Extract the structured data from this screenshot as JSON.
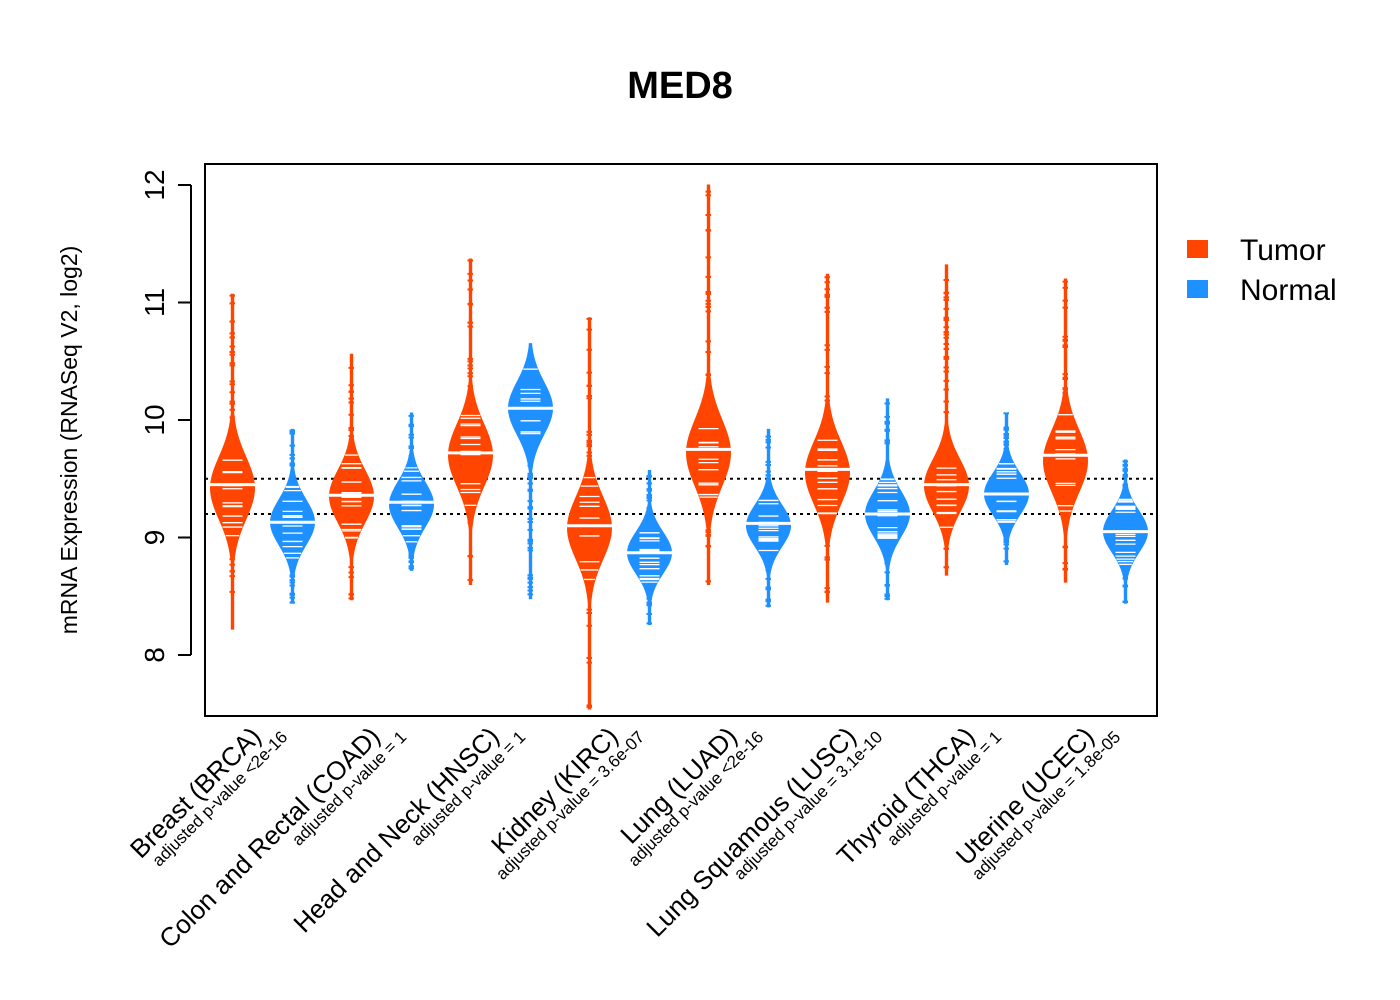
{
  "chart_data": {
    "type": "violin",
    "title": "MED8",
    "xlabel": "",
    "ylabel": "mRNA Expression (RNASeq V2, log2)",
    "ylim": [
      7.5,
      12.2
    ],
    "yticks": [
      8,
      9,
      10,
      11,
      12
    ],
    "reference_lines": [
      9.2,
      9.5
    ],
    "legend": {
      "placement": "top-right",
      "items": [
        "Tumor",
        "Normal"
      ]
    },
    "colors": {
      "Tumor": "#ff4500",
      "Normal": "#1e90ff"
    },
    "categories": [
      "Breast (BRCA)",
      "Colon and Rectal (COAD)",
      "Head and Neck (HNSC)",
      "Kidney (KIRC)",
      "Lung (LUAD)",
      "Lung Squamous (LUSC)",
      "Thyroid (THCA)",
      "Uterine (UCEC)"
    ],
    "pvalues": [
      "adjusted p-value <2e-16",
      "adjusted p-value = 1",
      "adjusted p-value = 1",
      "adjusted p-value = 3.6e-07",
      "adjusted p-value <2e-16",
      "adjusted p-value = 3.1e-10",
      "adjusted p-value = 1",
      "adjusted p-value = 1.8e-05"
    ],
    "series": [
      {
        "name": "Tumor",
        "groups": [
          {
            "min": 8.22,
            "max": 11.07,
            "median": 9.45,
            "mode": 9.42,
            "spread": 0.45
          },
          {
            "min": 8.47,
            "max": 10.56,
            "median": 9.36,
            "mode": 9.35,
            "spread": 0.38
          },
          {
            "min": 8.6,
            "max": 11.37,
            "median": 9.72,
            "mode": 9.7,
            "spread": 0.45
          },
          {
            "min": 7.54,
            "max": 10.87,
            "median": 9.1,
            "mode": 9.08,
            "spread": 0.45
          },
          {
            "min": 8.6,
            "max": 12.0,
            "median": 9.75,
            "mode": 9.72,
            "spread": 0.48
          },
          {
            "min": 8.45,
            "max": 11.24,
            "median": 9.58,
            "mode": 9.55,
            "spread": 0.45
          },
          {
            "min": 8.68,
            "max": 11.32,
            "median": 9.45,
            "mode": 9.44,
            "spread": 0.38
          },
          {
            "min": 8.62,
            "max": 11.2,
            "median": 9.7,
            "mode": 9.65,
            "spread": 0.45
          }
        ]
      },
      {
        "name": "Normal",
        "groups": [
          {
            "min": 8.44,
            "max": 9.92,
            "median": 9.13,
            "mode": 9.13,
            "spread": 0.33
          },
          {
            "min": 8.72,
            "max": 10.06,
            "median": 9.3,
            "mode": 9.28,
            "spread": 0.33
          },
          {
            "min": 8.48,
            "max": 10.65,
            "median": 10.1,
            "mode": 10.1,
            "spread": 0.38
          },
          {
            "min": 8.26,
            "max": 9.57,
            "median": 8.87,
            "mode": 8.87,
            "spread": 0.3
          },
          {
            "min": 8.41,
            "max": 9.92,
            "median": 9.12,
            "mode": 9.1,
            "spread": 0.3
          },
          {
            "min": 8.47,
            "max": 10.18,
            "median": 9.2,
            "mode": 9.2,
            "spread": 0.33
          },
          {
            "min": 8.77,
            "max": 10.06,
            "median": 9.37,
            "mode": 9.37,
            "spread": 0.3
          },
          {
            "min": 8.44,
            "max": 9.66,
            "median": 9.05,
            "mode": 9.05,
            "spread": 0.3
          }
        ]
      }
    ]
  }
}
